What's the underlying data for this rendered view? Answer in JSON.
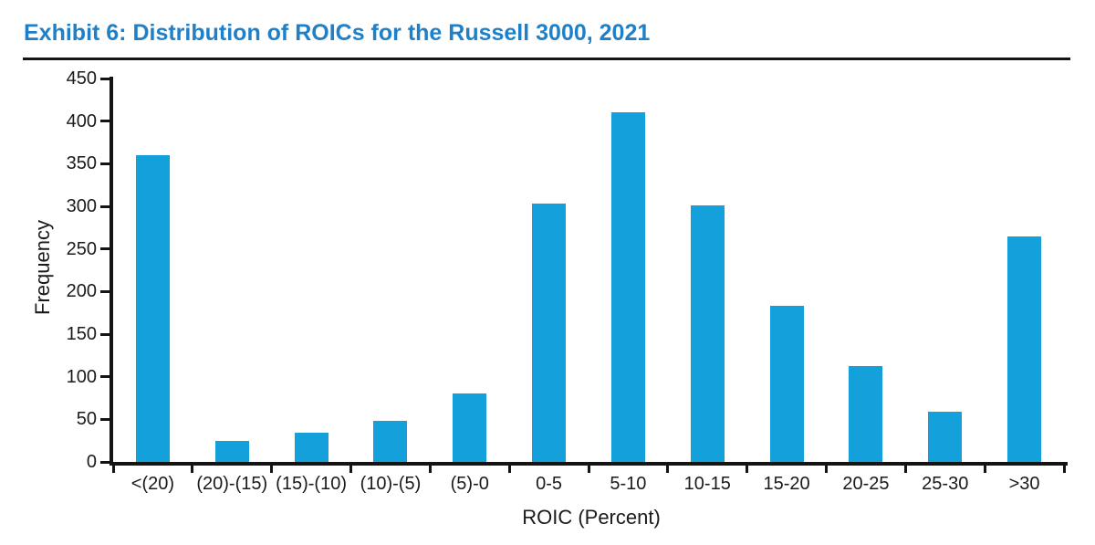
{
  "page": {
    "title": "Exhibit 6: Distribution of ROICs for the Russell 3000, 2021"
  },
  "colors": {
    "title_blue": "#1F80C8",
    "bar_blue": "#14A0DA",
    "axis_black": "#141414"
  },
  "chart_data": {
    "type": "bar",
    "title": "Exhibit 6: Distribution of ROICs for the Russell 3000, 2021",
    "categories": [
      "<(20)",
      "(20)-(15)",
      "(15)-(10)",
      "(10)-(5)",
      "(5)-0",
      "0-5",
      "5-10",
      "10-15",
      "15-20",
      "20-25",
      "25-30",
      ">30"
    ],
    "values": [
      360,
      25,
      34,
      48,
      80,
      303,
      410,
      301,
      183,
      112,
      59,
      265
    ],
    "xlabel": "ROIC (Percent)",
    "ylabel": "Frequency",
    "ylim": [
      0,
      450
    ],
    "ytick_step": 50,
    "yticks": [
      0,
      50,
      100,
      150,
      200,
      250,
      300,
      350,
      400,
      450
    ],
    "grid": false,
    "legend_position": "none",
    "bar_color": "#14A0DA"
  }
}
